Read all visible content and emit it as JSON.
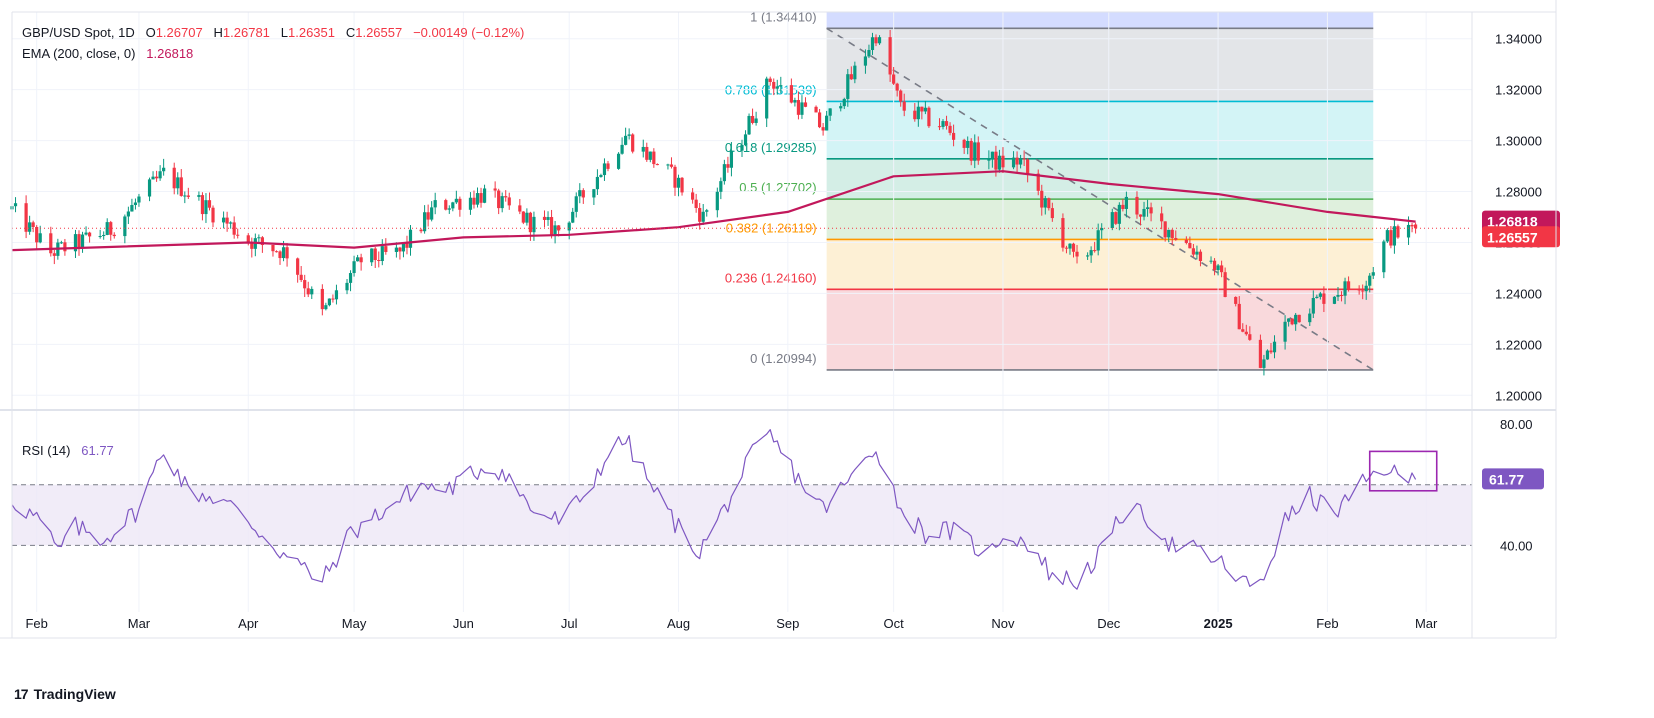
{
  "header": {
    "symbol": "GBP/USD Spot, 1D",
    "open_label": "O",
    "open": "1.26707",
    "high_label": "H",
    "high": "1.26781",
    "low_label": "L",
    "low": "1.26351",
    "close_label": "C",
    "close": "1.26557",
    "change": "−0.00149 (−0.12%)",
    "ema_label": "EMA (200, close, 0)",
    "ema_value": "1.26818",
    "rsi_label": "RSI (14)",
    "rsi_value": "61.77"
  },
  "branding": {
    "logo_mark": "17",
    "logo_text": "TradingView"
  },
  "colors": {
    "up": "#089981",
    "down": "#f23645",
    "ema": "#c2185b",
    "rsi": "#7e57c2",
    "fib_1": "#787b86",
    "fib_786": "#00bcd4",
    "fib_618": "#089981",
    "fib_5": "#4caf50",
    "fib_382": "#ff9800",
    "fib_236": "#f23645",
    "fib_0": "#787b86"
  },
  "chart_data": [
    {
      "type": "candlestick",
      "title": "GBP/USD Spot, 1D",
      "ylim": [
        1.195,
        1.3505
      ],
      "y_ticks": [
        "1.34000",
        "1.32000",
        "1.30000",
        "1.28000",
        "1.26000",
        "1.24000",
        "1.22000",
        "1.20000"
      ],
      "y_tick_values": [
        1.34,
        1.32,
        1.3,
        1.28,
        1.26,
        1.24,
        1.22,
        1.2
      ],
      "x_labels": [
        "Feb",
        "Mar",
        "Apr",
        "May",
        "Jun",
        "Jul",
        "Aug",
        "Sep",
        "Oct",
        "Nov",
        "Dec",
        "2025",
        "Feb",
        "Mar"
      ],
      "x_label_dates": [
        "2024-02-01",
        "2024-03-01",
        "2024-04-01",
        "2024-05-01",
        "2024-06-01",
        "2024-07-01",
        "2024-08-01",
        "2024-09-01",
        "2024-10-01",
        "2024-11-01",
        "2024-12-01",
        "2025-01-01",
        "2025-02-01",
        "2025-03-01"
      ],
      "x_range": [
        "2024-01-25",
        "2025-03-14"
      ],
      "price_path": [
        [
          "2024-01-25",
          1.273
        ],
        [
          "2024-02-05",
          1.256
        ],
        [
          "2024-02-13",
          1.26
        ],
        [
          "2024-02-22",
          1.265
        ],
        [
          "2024-03-08",
          1.287
        ],
        [
          "2024-03-20",
          1.274
        ],
        [
          "2024-04-01",
          1.261
        ],
        [
          "2024-04-12",
          1.256
        ],
        [
          "2024-04-22",
          1.232
        ],
        [
          "2024-05-03",
          1.253
        ],
        [
          "2024-05-14",
          1.256
        ],
        [
          "2024-05-24",
          1.274
        ],
        [
          "2024-06-07",
          1.279
        ],
        [
          "2024-06-20",
          1.268
        ],
        [
          "2024-06-28",
          1.265
        ],
        [
          "2024-07-17",
          1.302
        ],
        [
          "2024-07-31",
          1.285
        ],
        [
          "2024-08-08",
          1.27
        ],
        [
          "2024-08-27",
          1.324
        ],
        [
          "2024-09-11",
          1.305
        ],
        [
          "2024-09-26",
          1.342
        ],
        [
          "2024-10-03",
          1.313
        ],
        [
          "2024-10-15",
          1.306
        ],
        [
          "2024-10-23",
          1.296
        ],
        [
          "2024-10-31",
          1.291
        ],
        [
          "2024-11-06",
          1.292
        ],
        [
          "2024-11-22",
          1.251
        ],
        [
          "2024-12-06",
          1.276
        ],
        [
          "2024-12-18",
          1.265
        ],
        [
          "2024-12-31",
          1.251
        ],
        [
          "2025-01-13",
          1.211
        ],
        [
          "2025-01-21",
          1.23
        ],
        [
          "2025-01-31",
          1.239
        ],
        [
          "2025-02-12",
          1.245
        ],
        [
          "2025-02-18",
          1.262
        ],
        [
          "2025-02-26",
          1.2656
        ]
      ],
      "last_close": "1.26557",
      "ema": {
        "name": "EMA (200, close, 0)",
        "values": [
          [
            "2024-01-25",
            1.257
          ],
          [
            "2024-04-01",
            1.26
          ],
          [
            "2024-05-01",
            1.258
          ],
          [
            "2024-06-01",
            1.262
          ],
          [
            "2024-07-01",
            1.263
          ],
          [
            "2024-08-01",
            1.266
          ],
          [
            "2024-09-01",
            1.272
          ],
          [
            "2024-10-01",
            1.286
          ],
          [
            "2024-11-01",
            1.288
          ],
          [
            "2024-12-01",
            1.283
          ],
          [
            "2025-01-01",
            1.279
          ],
          [
            "2025-02-01",
            1.272
          ],
          [
            "2025-02-26",
            1.2682
          ]
        ],
        "last": "1.26818"
      },
      "fibonacci": {
        "start": [
          "2024-09-26",
          1.3441
        ],
        "end": [
          "2025-01-13",
          1.20994
        ],
        "x_start": "2024-09-12",
        "x_end": "2025-02-14",
        "levels": [
          {
            "ratio": "1",
            "price": 1.3441,
            "label": "1 (1.34410)"
          },
          {
            "ratio": "0.786",
            "price": 1.31539,
            "label": "0.786 (1.31539)"
          },
          {
            "ratio": "0.618",
            "price": 1.29285,
            "label": "0.618 (1.29285)"
          },
          {
            "ratio": "0.5",
            "price": 1.27702,
            "label": "0.5 (1.27702)"
          },
          {
            "ratio": "0.382",
            "price": 1.26119,
            "label": "0.382 (1.26119)"
          },
          {
            "ratio": "0.236",
            "price": 1.2416,
            "label": "0.236 (1.24160)"
          },
          {
            "ratio": "0",
            "price": 1.20994,
            "label": "0 (1.20994)"
          }
        ]
      }
    },
    {
      "type": "line",
      "title": "RSI (14)",
      "ylim": [
        18,
        84
      ],
      "y_ticks": [
        "80.00",
        "40.00"
      ],
      "y_tick_values": [
        80,
        40
      ],
      "band": [
        40,
        60
      ],
      "last": "61.77",
      "values": [
        [
          "2024-01-25",
          55
        ],
        [
          "2024-02-02",
          48
        ],
        [
          "2024-02-07",
          38
        ],
        [
          "2024-02-12",
          46
        ],
        [
          "2024-02-20",
          42
        ],
        [
          "2024-03-01",
          52
        ],
        [
          "2024-03-08",
          72
        ],
        [
          "2024-03-15",
          58
        ],
        [
          "2024-03-25",
          55
        ],
        [
          "2024-04-01",
          48
        ],
        [
          "2024-04-10",
          38
        ],
        [
          "2024-04-22",
          28
        ],
        [
          "2024-04-30",
          44
        ],
        [
          "2024-05-10",
          52
        ],
        [
          "2024-05-20",
          60
        ],
        [
          "2024-05-27",
          58
        ],
        [
          "2024-06-07",
          66
        ],
        [
          "2024-06-13",
          64
        ],
        [
          "2024-06-20",
          52
        ],
        [
          "2024-06-28",
          48
        ],
        [
          "2024-07-05",
          56
        ],
        [
          "2024-07-12",
          70
        ],
        [
          "2024-07-17",
          75
        ],
        [
          "2024-07-24",
          60
        ],
        [
          "2024-08-02",
          44
        ],
        [
          "2024-08-07",
          38
        ],
        [
          "2024-08-14",
          52
        ],
        [
          "2024-08-22",
          70
        ],
        [
          "2024-08-27",
          76
        ],
        [
          "2024-09-04",
          62
        ],
        [
          "2024-09-11",
          52
        ],
        [
          "2024-09-19",
          62
        ],
        [
          "2024-09-26",
          73
        ],
        [
          "2024-10-03",
          52
        ],
        [
          "2024-10-10",
          44
        ],
        [
          "2024-10-17",
          45
        ],
        [
          "2024-10-28",
          37
        ],
        [
          "2024-11-01",
          44
        ],
        [
          "2024-11-08",
          41
        ],
        [
          "2024-11-15",
          30
        ],
        [
          "2024-11-22",
          28
        ],
        [
          "2024-11-29",
          38
        ],
        [
          "2024-12-06",
          52
        ],
        [
          "2024-12-12",
          49
        ],
        [
          "2024-12-19",
          40
        ],
        [
          "2024-12-27",
          38
        ],
        [
          "2025-01-03",
          33
        ],
        [
          "2025-01-10",
          26
        ],
        [
          "2025-01-14",
          30
        ],
        [
          "2025-01-20",
          48
        ],
        [
          "2025-01-27",
          56
        ],
        [
          "2025-02-03",
          51
        ],
        [
          "2025-02-06",
          54
        ],
        [
          "2025-02-11",
          60
        ],
        [
          "2025-02-14",
          63
        ],
        [
          "2025-02-18",
          66
        ],
        [
          "2025-02-21",
          62
        ],
        [
          "2025-02-26",
          61.77
        ]
      ]
    }
  ]
}
